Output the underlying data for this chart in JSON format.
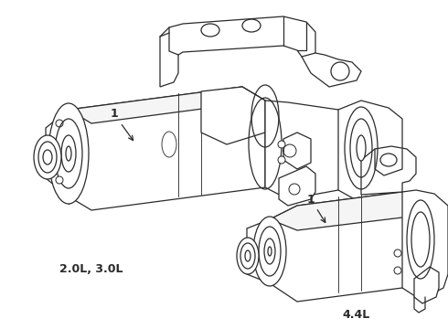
{
  "bg_color": "#ffffff",
  "line_color": "#2a2a2a",
  "label1_text": "2.0L, 3.0L",
  "label2_text": "4.4L",
  "part_number": "1",
  "lw": 0.9,
  "figw": 4.9,
  "figh": 3.6,
  "dpi": 100
}
